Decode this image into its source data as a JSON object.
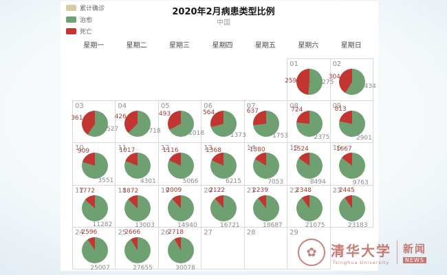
{
  "page": {
    "title": "2020年2月病患类型比例",
    "subtitle": "中国"
  },
  "legend": {
    "items": [
      {
        "label": "累计确诊",
        "color": "#d5cba4"
      },
      {
        "label": "治愈",
        "color": "#6fa071"
      },
      {
        "label": "死亡",
        "color": "#c23531"
      }
    ]
  },
  "calendar": {
    "weekdays": [
      "星期一",
      "星期二",
      "星期三",
      "星期四",
      "星期五",
      "星期六",
      "星期日"
    ]
  },
  "watermark": {
    "university_cn": "清华大学",
    "university_en": "Tsinghua University",
    "news_cn": "新闻",
    "news_en": "NEWS"
  },
  "chart_data": {
    "type": "pie",
    "title": "2020年2月病患类型比例",
    "region": "中国",
    "month": "2020-02",
    "layout": "calendar-heatmap-of-pies",
    "series_names": {
      "cured": "治愈",
      "dead": "死亡"
    },
    "colors": {
      "cured": "#6fa071",
      "dead": "#c23531"
    },
    "days": [
      {
        "date": "01",
        "col": 5,
        "row": 0,
        "dead": 259,
        "cured": 275
      },
      {
        "date": "02",
        "col": 6,
        "row": 0,
        "dead": 304,
        "cured": 434
      },
      {
        "date": "03",
        "col": 0,
        "row": 1,
        "dead": 361,
        "cured": 527
      },
      {
        "date": "04",
        "col": 1,
        "row": 1,
        "dead": 426,
        "cured": 718
      },
      {
        "date": "05",
        "col": 2,
        "row": 1,
        "dead": 493,
        "cured": 1018
      },
      {
        "date": "06",
        "col": 3,
        "row": 1,
        "dead": 564,
        "cured": 1373
      },
      {
        "date": "07",
        "col": 4,
        "row": 1,
        "dead": 637,
        "cured": 1753
      },
      {
        "date": "08",
        "col": 5,
        "row": 1,
        "dead": 724,
        "cured": 2375
      },
      {
        "date": "09",
        "col": 6,
        "row": 1,
        "dead": 813,
        "cured": 2901
      },
      {
        "date": "10",
        "col": 0,
        "row": 2,
        "dead": 909,
        "cured": 3551
      },
      {
        "date": "11",
        "col": 1,
        "row": 2,
        "dead": 1017,
        "cured": 4301
      },
      {
        "date": "12",
        "col": 2,
        "row": 2,
        "dead": 1116,
        "cured": 5066
      },
      {
        "date": "13",
        "col": 3,
        "row": 2,
        "dead": 1368,
        "cured": 6215
      },
      {
        "date": "14",
        "col": 4,
        "row": 2,
        "dead": 1380,
        "cured": 7053
      },
      {
        "date": "15",
        "col": 5,
        "row": 2,
        "dead": 1524,
        "cured": 8494
      },
      {
        "date": "16",
        "col": 6,
        "row": 2,
        "dead": 1667,
        "cured": 9763
      },
      {
        "date": "17",
        "col": 0,
        "row": 3,
        "dead": 1772,
        "cured": 11282
      },
      {
        "date": "18",
        "col": 1,
        "row": 3,
        "dead": 1872,
        "cured": 13003
      },
      {
        "date": "19",
        "col": 2,
        "row": 3,
        "dead": 2009,
        "cured": 14940
      },
      {
        "date": "20",
        "col": 3,
        "row": 3,
        "dead": 2122,
        "cured": 16721
      },
      {
        "date": "21",
        "col": 4,
        "row": 3,
        "dead": 2239,
        "cured": 18687
      },
      {
        "date": "22",
        "col": 5,
        "row": 3,
        "dead": 2348,
        "cured": 21075
      },
      {
        "date": "23",
        "col": 6,
        "row": 3,
        "dead": 2445,
        "cured": 23183
      },
      {
        "date": "24",
        "col": 0,
        "row": 4,
        "dead": 2596,
        "cured": 25007
      },
      {
        "date": "25",
        "col": 1,
        "row": 4,
        "dead": 2666,
        "cured": 27655
      },
      {
        "date": "26",
        "col": 2,
        "row": 4,
        "dead": 2718,
        "cured": 30078
      },
      {
        "date": "27",
        "col": 3,
        "row": 4
      },
      {
        "date": "28",
        "col": 4,
        "row": 4
      },
      {
        "date": "29",
        "col": 5,
        "row": 4
      }
    ]
  }
}
